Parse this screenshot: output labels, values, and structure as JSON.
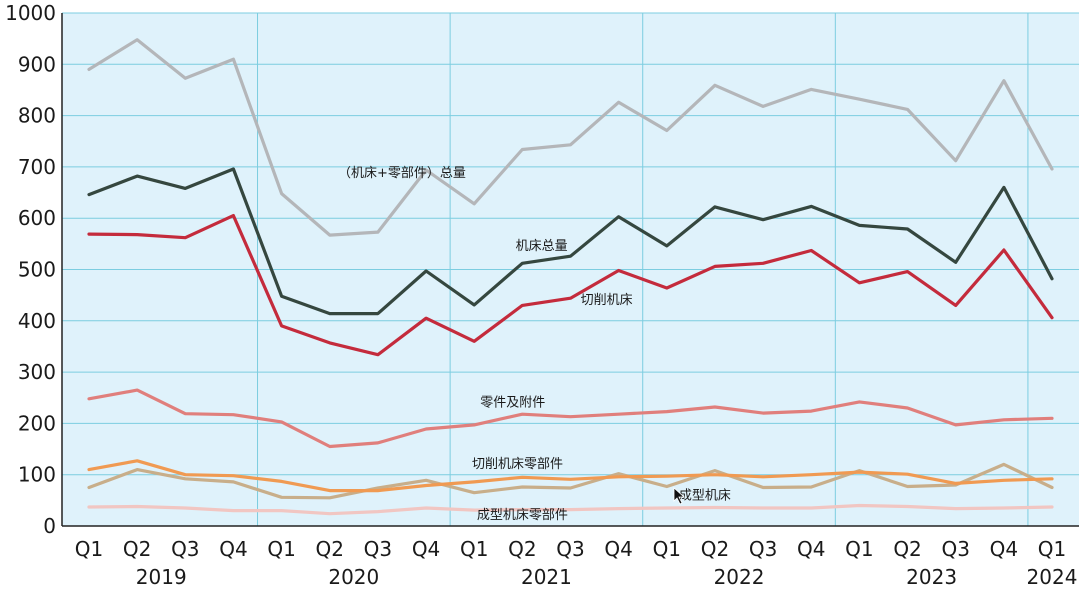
{
  "chart_data": {
    "type": "line",
    "ylim": [
      0,
      1000
    ],
    "y_ticks": [
      "0",
      "100",
      "200",
      "300",
      "400",
      "500",
      "600",
      "700",
      "800",
      "900",
      "1000"
    ],
    "categories": [
      "Q1",
      "Q2",
      "Q3",
      "Q4",
      "Q1",
      "Q2",
      "Q3",
      "Q4",
      "Q1",
      "Q2",
      "Q3",
      "Q4",
      "Q1",
      "Q2",
      "Q3",
      "Q4",
      "Q1",
      "Q2",
      "Q3",
      "Q4",
      "Q1"
    ],
    "years": [
      "2019",
      "2020",
      "2021",
      "2022",
      "2023",
      "2024"
    ],
    "grid": true,
    "colors": {
      "plot_background": "#dff2fb",
      "grid": "#7ccde0"
    },
    "series": [
      {
        "name": "（机床+零部件）总量",
        "color": "#b4b6b9",
        "values": [
          890,
          948,
          873,
          910,
          648,
          567,
          573,
          694,
          628,
          734,
          743,
          826,
          771,
          859,
          818,
          851,
          832,
          812,
          712,
          868,
          696
        ]
      },
      {
        "name": "机床总量",
        "color": "#35473f",
        "values": [
          646,
          682,
          658,
          696,
          448,
          414,
          414,
          497,
          431,
          512,
          526,
          603,
          546,
          622,
          597,
          623,
          586,
          579,
          514,
          660,
          482
        ]
      },
      {
        "name": "切削机床",
        "color": "#c42b3c",
        "values": [
          569,
          568,
          562,
          605,
          390,
          357,
          334,
          405,
          360,
          430,
          444,
          498,
          464,
          506,
          512,
          537,
          474,
          496,
          430,
          538,
          406
        ]
      },
      {
        "name": "零件及附件",
        "color": "#e07f7c",
        "values": [
          248,
          265,
          219,
          217,
          203,
          155,
          162,
          189,
          197,
          218,
          213,
          218,
          223,
          232,
          220,
          224,
          242,
          230,
          197,
          207,
          210
        ]
      },
      {
        "name": "切削机床零部件",
        "color": "#f09a52",
        "values": [
          110,
          127,
          100,
          98,
          87,
          69,
          69,
          79,
          86,
          95,
          91,
          96,
          97,
          100,
          96,
          100,
          105,
          101,
          83,
          89,
          92
        ]
      },
      {
        "name": "成型机床",
        "color": "#c8ae8a",
        "values": [
          75,
          110,
          92,
          86,
          56,
          55,
          74,
          89,
          65,
          76,
          74,
          102,
          77,
          108,
          75,
          76,
          108,
          77,
          80,
          120,
          75
        ]
      },
      {
        "name": "成型机床零部件",
        "color": "#f1c6c2",
        "values": [
          37,
          38,
          35,
          30,
          30,
          24,
          28,
          35,
          31,
          32,
          32,
          34,
          35,
          36,
          35,
          35,
          40,
          38,
          34,
          35,
          37
        ]
      }
    ],
    "annotation_label": "成型机床"
  }
}
